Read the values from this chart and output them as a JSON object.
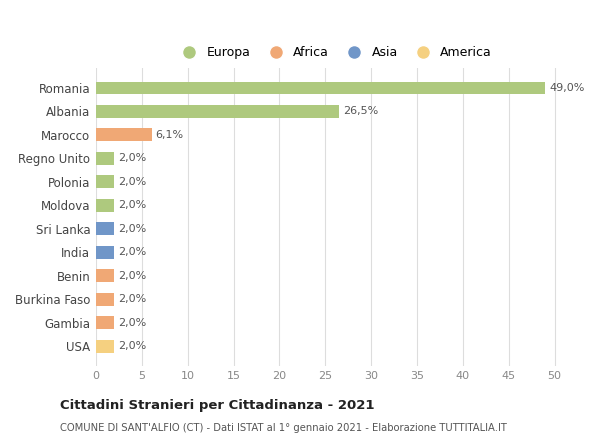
{
  "categories": [
    "Romania",
    "Albania",
    "Marocco",
    "Regno Unito",
    "Polonia",
    "Moldova",
    "Sri Lanka",
    "India",
    "Benin",
    "Burkina Faso",
    "Gambia",
    "USA"
  ],
  "values": [
    49.0,
    26.5,
    6.1,
    2.0,
    2.0,
    2.0,
    2.0,
    2.0,
    2.0,
    2.0,
    2.0,
    2.0
  ],
  "bar_colors": [
    "#aec97e",
    "#aec97e",
    "#f0a875",
    "#aec97e",
    "#aec97e",
    "#aec97e",
    "#7096c8",
    "#7096c8",
    "#f0a875",
    "#f0a875",
    "#f0a875",
    "#f5d080"
  ],
  "labels": [
    "49,0%",
    "26,5%",
    "6,1%",
    "2,0%",
    "2,0%",
    "2,0%",
    "2,0%",
    "2,0%",
    "2,0%",
    "2,0%",
    "2,0%",
    "2,0%"
  ],
  "legend_labels": [
    "Europa",
    "Africa",
    "Asia",
    "America"
  ],
  "legend_colors": [
    "#aec97e",
    "#f0a875",
    "#7096c8",
    "#f5d080"
  ],
  "title": "Cittadini Stranieri per Cittadinanza - 2021",
  "subtitle": "COMUNE DI SANT'ALFIO (CT) - Dati ISTAT al 1° gennaio 2021 - Elaborazione TUTTITALIA.IT",
  "xlim": [
    0,
    52
  ],
  "xticks": [
    0,
    5,
    10,
    15,
    20,
    25,
    30,
    35,
    40,
    45,
    50
  ],
  "background_color": "#ffffff",
  "grid_color": "#dddddd"
}
